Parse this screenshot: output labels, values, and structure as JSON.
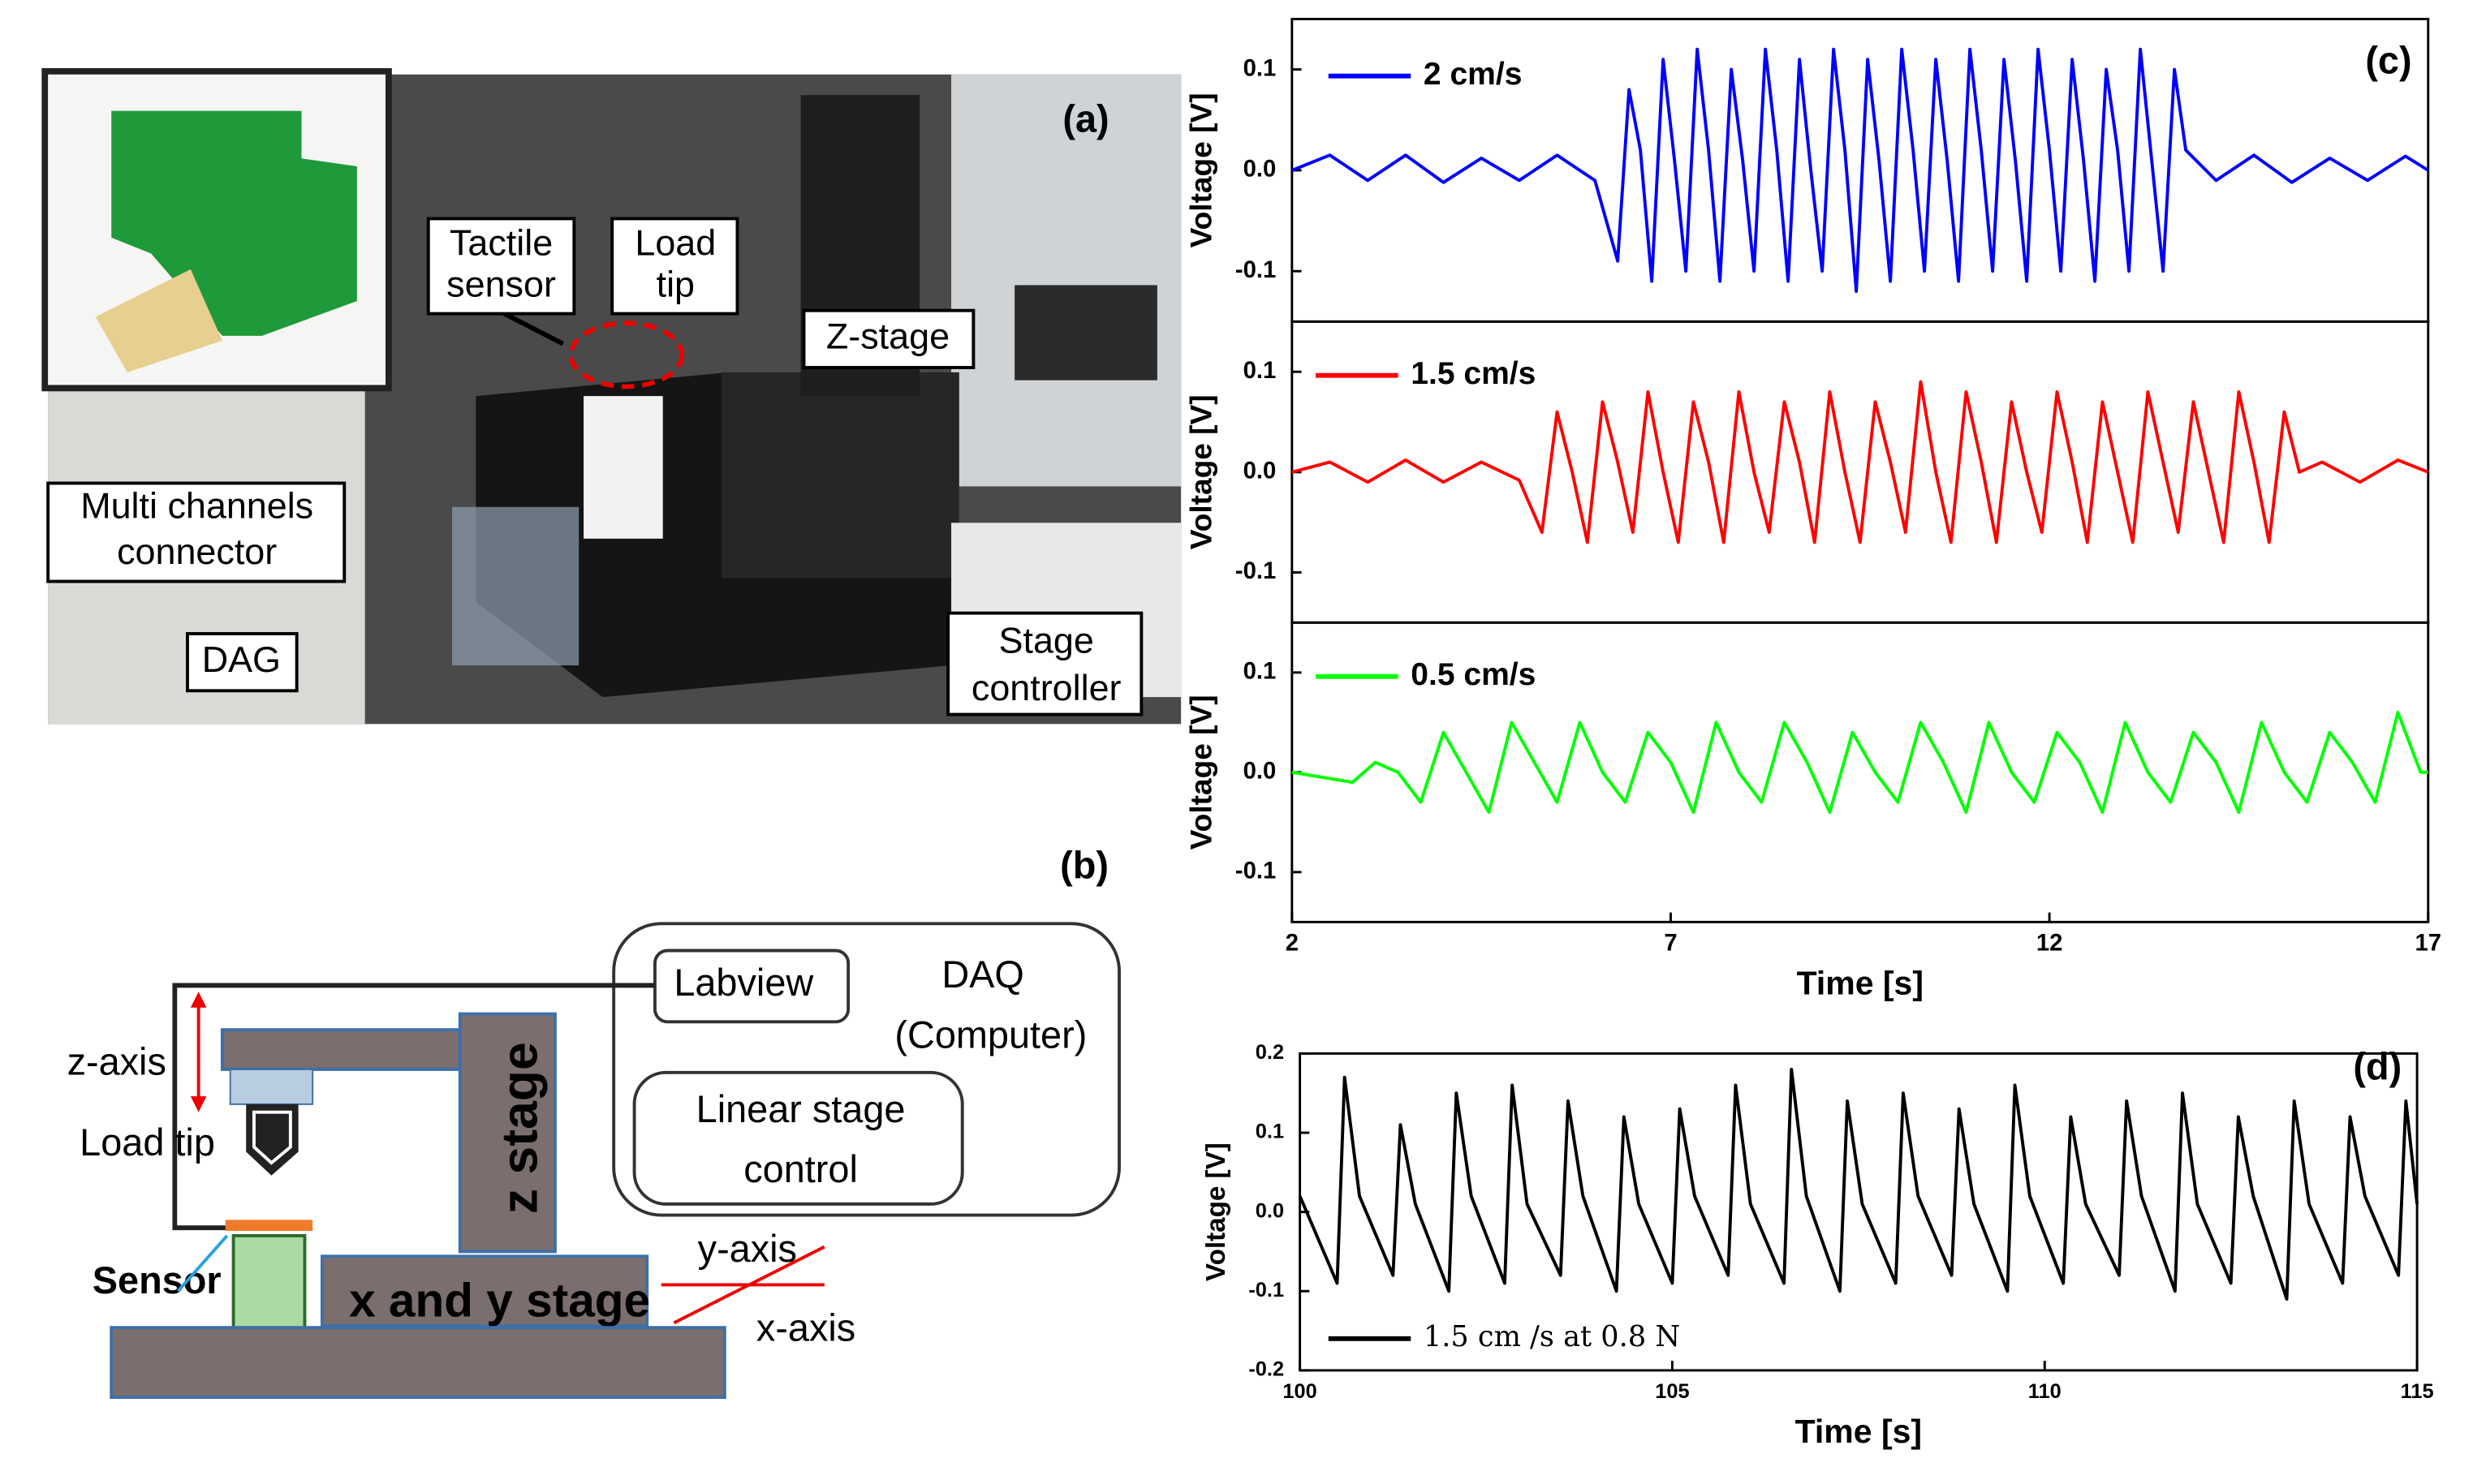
{
  "photo": {
    "panel_label": "(a)",
    "callouts": [
      {
        "lines": [
          "Tactile",
          "sensor"
        ]
      },
      {
        "lines": [
          "Load",
          "tip"
        ]
      },
      {
        "lines": [
          "Z-stage"
        ]
      },
      {
        "lines": [
          "Multi channels",
          "connector"
        ]
      },
      {
        "lines": [
          "DAG"
        ]
      },
      {
        "lines": [
          "Stage",
          "controller"
        ]
      }
    ]
  },
  "diagram": {
    "panel_label": "(b)",
    "labview": "Labview",
    "daq": [
      "DAQ",
      "(Computer)"
    ],
    "linear": [
      "Linear stage",
      "control"
    ],
    "z_axis": "z-axis",
    "load_tip": "Load tip",
    "z_stage": "z stage",
    "sensor": "Sensor",
    "xy_stage": "x and y stage",
    "y_axis": "y-axis",
    "x_axis": "x-axis"
  },
  "chart_data": [
    {
      "type": "line",
      "panel_label": "(c)",
      "ylabel": "Voltage [V]",
      "xlim": [
        2,
        17
      ],
      "ylim": [
        -0.15,
        0.15
      ],
      "yticks": [
        -0.1,
        {
          "value": 0,
          "label": "0.0"
        },
        0.1
      ],
      "series": [
        {
          "name": "2 cm/s",
          "color": "#0000ff",
          "x": [
            2,
            2.5,
            3,
            3.5,
            4,
            4.5,
            5,
            5.5,
            6,
            6.3,
            6.45,
            6.6,
            6.75,
            6.9,
            7.05,
            7.2,
            7.35,
            7.5,
            7.65,
            7.8,
            7.95,
            8.1,
            8.25,
            8.4,
            8.55,
            8.7,
            8.85,
            9,
            9.15,
            9.3,
            9.45,
            9.6,
            9.75,
            9.9,
            10.05,
            10.2,
            10.35,
            10.5,
            10.65,
            10.8,
            10.95,
            11.1,
            11.25,
            11.4,
            11.55,
            11.7,
            11.85,
            12,
            12.15,
            12.3,
            12.45,
            12.6,
            12.75,
            12.9,
            13.05,
            13.2,
            13.35,
            13.5,
            13.65,
            13.8,
            14.2,
            14.7,
            15.2,
            15.7,
            16.2,
            16.7,
            17
          ],
          "values": [
            0,
            0.015,
            -0.01,
            0.015,
            -0.012,
            0.012,
            -0.01,
            0.015,
            -0.01,
            -0.09,
            0.08,
            0.02,
            -0.11,
            0.11,
            0.01,
            -0.1,
            0.12,
            0.02,
            -0.11,
            0.1,
            0.01,
            -0.1,
            0.12,
            0.02,
            -0.11,
            0.11,
            0,
            -0.1,
            0.12,
            0.02,
            -0.12,
            0.11,
            0.01,
            -0.11,
            0.12,
            0.02,
            -0.1,
            0.11,
            0.01,
            -0.11,
            0.12,
            0.02,
            -0.1,
            0.11,
            0.01,
            -0.11,
            0.12,
            0.02,
            -0.1,
            0.11,
            0.01,
            -0.11,
            0.1,
            0.02,
            -0.1,
            0.12,
            0.01,
            -0.1,
            0.1,
            0.02,
            -0.01,
            0.015,
            -0.012,
            0.012,
            -0.01,
            0.014,
            0
          ]
        }
      ]
    },
    {
      "type": "line",
      "ylabel": "Voltage [V]",
      "xlim": [
        2,
        17
      ],
      "ylim": [
        -0.15,
        0.15
      ],
      "yticks": [
        -0.1,
        {
          "value": 0,
          "label": "0.0"
        },
        0.1
      ],
      "series": [
        {
          "name": "1.5 cm/s",
          "color": "#ff0000",
          "x": [
            2,
            2.5,
            3,
            3.5,
            4,
            4.5,
            5,
            5.3,
            5.5,
            5.7,
            5.9,
            6.1,
            6.3,
            6.5,
            6.7,
            6.9,
            7.1,
            7.3,
            7.5,
            7.7,
            7.9,
            8.1,
            8.3,
            8.5,
            8.7,
            8.9,
            9.1,
            9.3,
            9.5,
            9.7,
            9.9,
            10.1,
            10.3,
            10.5,
            10.7,
            10.9,
            11.1,
            11.3,
            11.5,
            11.7,
            11.9,
            12.1,
            12.3,
            12.5,
            12.7,
            12.9,
            13.1,
            13.3,
            13.5,
            13.7,
            13.9,
            14.1,
            14.3,
            14.5,
            14.7,
            14.9,
            15.1,
            15.3,
            15.6,
            16.1,
            16.6,
            17
          ],
          "values": [
            0,
            0.01,
            -0.01,
            0.012,
            -0.01,
            0.01,
            -0.008,
            -0.06,
            0.06,
            0,
            -0.07,
            0.07,
            0.01,
            -0.06,
            0.08,
            0,
            -0.07,
            0.07,
            0.01,
            -0.07,
            0.08,
            0,
            -0.06,
            0.07,
            0.01,
            -0.07,
            0.08,
            0,
            -0.07,
            0.07,
            0.01,
            -0.06,
            0.09,
            0,
            -0.07,
            0.08,
            0.01,
            -0.07,
            0.07,
            0,
            -0.06,
            0.08,
            0.01,
            -0.07,
            0.07,
            0,
            -0.07,
            0.08,
            0.01,
            -0.06,
            0.07,
            0,
            -0.07,
            0.08,
            0.01,
            -0.07,
            0.06,
            0,
            0.01,
            -0.01,
            0.012,
            0
          ]
        }
      ]
    },
    {
      "type": "line",
      "ylabel": "Voltage [V]",
      "xlabel": "Time [s]",
      "xlim": [
        2,
        17
      ],
      "ylim": [
        -0.15,
        0.15
      ],
      "xticks": [
        2,
        7,
        12,
        17
      ],
      "yticks": [
        -0.1,
        {
          "value": 0,
          "label": "0.0"
        },
        0.1
      ],
      "series": [
        {
          "name": "0.5 cm/s",
          "color": "#00ff00",
          "x": [
            2,
            2.8,
            3.1,
            3.4,
            3.7,
            4,
            4.3,
            4.6,
            4.9,
            5.2,
            5.5,
            5.8,
            6.1,
            6.4,
            6.7,
            7,
            7.3,
            7.6,
            7.9,
            8.2,
            8.5,
            8.8,
            9.1,
            9.4,
            9.7,
            10,
            10.3,
            10.6,
            10.9,
            11.2,
            11.5,
            11.8,
            12.1,
            12.4,
            12.7,
            13,
            13.3,
            13.6,
            13.9,
            14.2,
            14.5,
            14.8,
            15.1,
            15.4,
            15.7,
            16,
            16.3,
            16.6,
            16.9,
            17
          ],
          "values": [
            0,
            -0.01,
            0.01,
            0,
            -0.03,
            0.04,
            0,
            -0.04,
            0.05,
            0.01,
            -0.03,
            0.05,
            0,
            -0.03,
            0.04,
            0.01,
            -0.04,
            0.05,
            0,
            -0.03,
            0.05,
            0.01,
            -0.04,
            0.04,
            0,
            -0.03,
            0.05,
            0.01,
            -0.04,
            0.05,
            0,
            -0.03,
            0.04,
            0.01,
            -0.04,
            0.05,
            0,
            -0.03,
            0.04,
            0.01,
            -0.04,
            0.05,
            0,
            -0.03,
            0.04,
            0.01,
            -0.03,
            0.06,
            0,
            0
          ]
        }
      ]
    },
    {
      "type": "line",
      "panel_label": "(d)",
      "ylabel": "Voltage [V]",
      "xlabel": "Time [s]",
      "xlim": [
        100,
        115
      ],
      "ylim": [
        -0.2,
        0.2
      ],
      "xticks": [
        100,
        105,
        110,
        115
      ],
      "yticks": [
        -0.2,
        -0.1,
        {
          "value": 0,
          "label": "0.0"
        },
        0.1,
        0.2
      ],
      "series": [
        {
          "name": "1.5 cm /s at 0.8 N",
          "color": "#000000",
          "x": [
            100,
            100.5,
            100.6,
            100.8,
            101.25,
            101.35,
            101.55,
            102,
            102.1,
            102.3,
            102.75,
            102.85,
            103.05,
            103.5,
            103.6,
            103.8,
            104.25,
            104.35,
            104.55,
            105,
            105.1,
            105.3,
            105.75,
            105.85,
            106.05,
            106.5,
            106.6,
            106.8,
            107.25,
            107.35,
            107.55,
            108,
            108.1,
            108.3,
            108.75,
            108.85,
            109.05,
            109.5,
            109.6,
            109.8,
            110.25,
            110.35,
            110.55,
            111,
            111.1,
            111.3,
            111.75,
            111.85,
            112.05,
            112.5,
            112.6,
            112.8,
            113.25,
            113.35,
            113.55,
            114,
            114.1,
            114.3,
            114.75,
            114.85,
            115
          ],
          "values": [
            0.02,
            -0.09,
            0.17,
            0.02,
            -0.08,
            0.11,
            0.01,
            -0.1,
            0.15,
            0.02,
            -0.09,
            0.16,
            0.01,
            -0.08,
            0.14,
            0.02,
            -0.1,
            0.12,
            0.01,
            -0.09,
            0.13,
            0.02,
            -0.08,
            0.16,
            0.01,
            -0.09,
            0.18,
            0.02,
            -0.1,
            0.14,
            0.01,
            -0.09,
            0.15,
            0.02,
            -0.08,
            0.13,
            0.01,
            -0.1,
            0.16,
            0.02,
            -0.09,
            0.12,
            0.01,
            -0.08,
            0.14,
            0.02,
            -0.1,
            0.15,
            0.01,
            -0.09,
            0.12,
            0.02,
            -0.11,
            0.14,
            0.01,
            -0.09,
            0.12,
            0.02,
            -0.08,
            0.14,
            0.01
          ]
        }
      ]
    }
  ]
}
